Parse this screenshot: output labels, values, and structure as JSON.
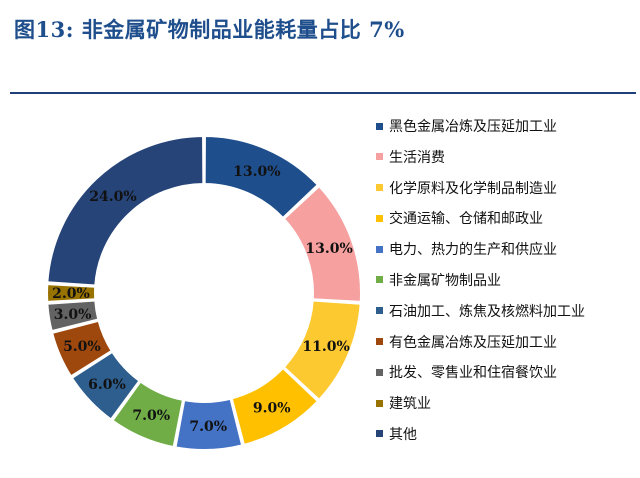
{
  "header": {
    "title": "图13: 非金属矿物制品业能耗量占比 7%"
  },
  "chart_data": {
    "type": "pie",
    "donut": true,
    "categories": [
      "黑色金属冶炼及压延加工业",
      "生活消费",
      "化学原料及化学制品制造业",
      "交通运输、仓储和邮政业",
      "电力、热力的生产和供应业",
      "非金属矿物制品业",
      "石油加工、炼焦及核燃料加工业",
      "有色金属冶炼及压延加工业",
      "批发、零售业和住宿餐饮业",
      "建筑业",
      "其他"
    ],
    "values": [
      13.0,
      13.0,
      11.0,
      9.0,
      7.0,
      7.0,
      6.0,
      5.0,
      3.0,
      2.0,
      24.0
    ],
    "labels": [
      "13.0%",
      "13.0%",
      "11.0%",
      "9.0%",
      "7.0%",
      "7.0%",
      "6.0%",
      "5.0%",
      "3.0%",
      "2.0%",
      "24.0%"
    ],
    "colors": [
      "#1f4e8c",
      "#f6a0a0",
      "#fdc930",
      "#ffc000",
      "#4472c4",
      "#70ad47",
      "#2e5e8e",
      "#9e480e",
      "#636363",
      "#997300",
      "#264478"
    ],
    "legend_position": "right"
  }
}
